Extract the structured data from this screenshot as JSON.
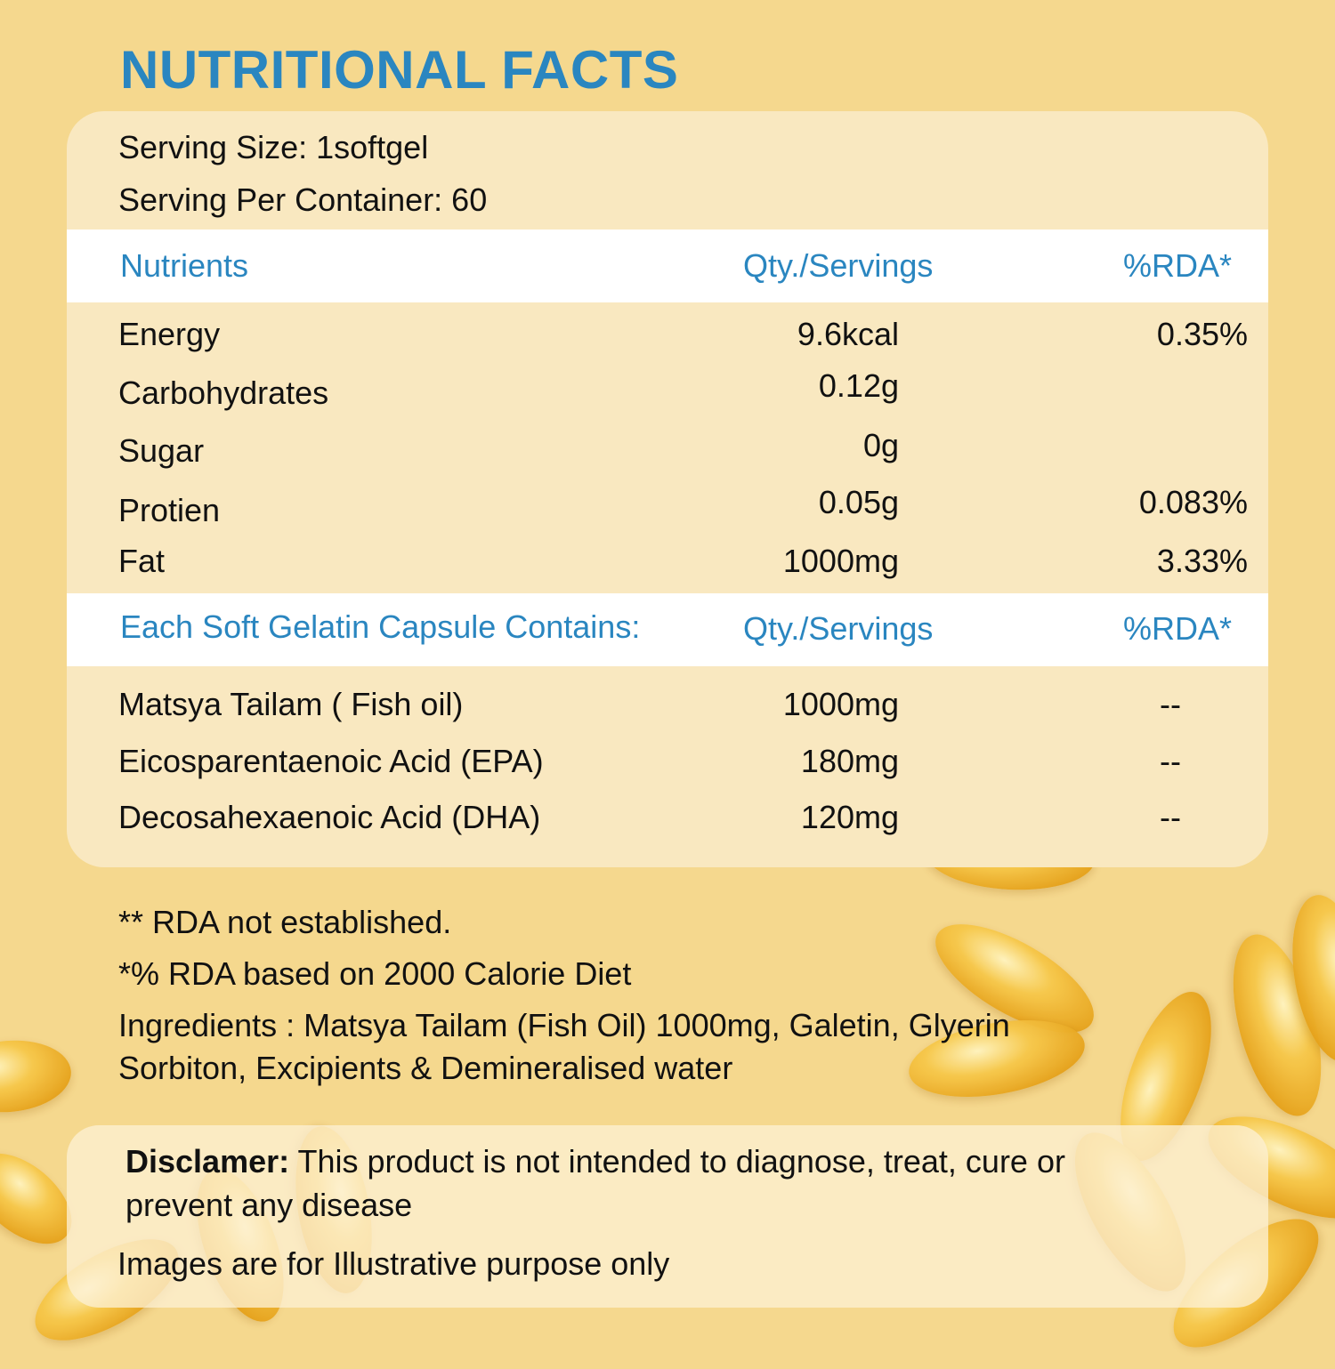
{
  "title": "NUTRITIONAL FACTS",
  "serving_size": "Serving Size: 1softgel",
  "servings_per_container": "Serving Per Container: 60",
  "table1": {
    "headers": [
      "Nutrients",
      "Qty./Servings",
      "%RDA*"
    ],
    "rows": [
      {
        "name": "Energy",
        "qty": "9.6kcal",
        "rda": "0.35%"
      },
      {
        "name": "Carbohydrates",
        "qty": "0.12g",
        "rda": ""
      },
      {
        "name": "Sugar",
        "qty": "0g",
        "rda": ""
      },
      {
        "name": "Protien",
        "qty": "0.05g",
        "rda": "0.083%"
      },
      {
        "name": "Fat",
        "qty": "1000mg",
        "rda": "3.33%"
      }
    ]
  },
  "table2": {
    "headers": [
      "Each Soft Gelatin Capsule Contains:",
      "Qty./Servings",
      "%RDA*"
    ],
    "rows": [
      {
        "name": "Matsya Tailam ( Fish oil)",
        "qty": "1000mg",
        "rda": "--"
      },
      {
        "name": "Eicosparentaenoic Acid (EPA)",
        "qty": "180mg",
        "rda": "--"
      },
      {
        "name": "Decosahexaenoic Acid (DHA)",
        "qty": "120mg",
        "rda": "--"
      }
    ]
  },
  "notes": [
    "** RDA not established.",
    "*% RDA based on 2000 Calorie Diet",
    "Ingredients : Matsya Tailam (Fish Oil) 1000mg, Galetin, Glyerin",
    "Sorbiton, Excipients & Demineralised water"
  ],
  "disclaimer": {
    "label": "Disclamer:",
    "text": " This product is not intended to diagnose, treat, cure or",
    "text2": "prevent any disease",
    "images_note": "Images are for Illustrative purpose only"
  },
  "colors": {
    "background": "#f5d88e",
    "card": "#f9e8c0",
    "accent": "#2a86c0"
  }
}
